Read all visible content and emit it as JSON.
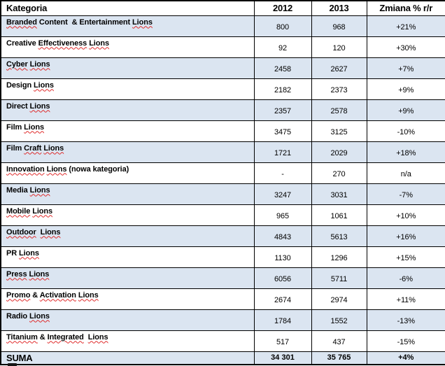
{
  "table": {
    "headers": {
      "category": "Kategoria",
      "y2012": "2012",
      "y2013": "2013",
      "change": "Zmiana % r/r"
    },
    "rows": [
      {
        "shaded": true,
        "v2012": "800",
        "v2013": "968",
        "change": "+21%",
        "segments": [
          {
            "t": "Branded",
            "sq": true
          },
          {
            "t": " Content  & Entertainment ",
            "sq": false
          },
          {
            "t": "Lions",
            "sq": true
          }
        ]
      },
      {
        "shaded": false,
        "v2012": "92",
        "v2013": "120",
        "change": "+30%",
        "segments": [
          {
            "t": "Creative ",
            "sq": false
          },
          {
            "t": "Effectiveness",
            "sq": true
          },
          {
            "t": " ",
            "sq": false
          },
          {
            "t": "Lions",
            "sq": true
          }
        ]
      },
      {
        "shaded": true,
        "v2012": "2458",
        "v2013": "2627",
        "change": "+7%",
        "segments": [
          {
            "t": "Cyber",
            "sq": true
          },
          {
            "t": " ",
            "sq": false
          },
          {
            "t": "Lions",
            "sq": true
          }
        ]
      },
      {
        "shaded": false,
        "v2012": "2182",
        "v2013": "2373",
        "change": "+9%",
        "segments": [
          {
            "t": "Design ",
            "sq": false
          },
          {
            "t": "Lions",
            "sq": true
          }
        ]
      },
      {
        "shaded": true,
        "v2012": "2357",
        "v2013": "2578",
        "change": "+9%",
        "segments": [
          {
            "t": "Direct ",
            "sq": false
          },
          {
            "t": "Lions",
            "sq": true
          }
        ]
      },
      {
        "shaded": false,
        "v2012": "3475",
        "v2013": "3125",
        "change": "-10%",
        "segments": [
          {
            "t": "Film ",
            "sq": false
          },
          {
            "t": "Lions",
            "sq": true
          }
        ]
      },
      {
        "shaded": true,
        "v2012": "1721",
        "v2013": "2029",
        "change": "+18%",
        "segments": [
          {
            "t": "Film ",
            "sq": false
          },
          {
            "t": "Craft",
            "sq": true
          },
          {
            "t": " ",
            "sq": false
          },
          {
            "t": "Lions",
            "sq": true
          }
        ]
      },
      {
        "shaded": false,
        "v2012": "-",
        "v2013": "270",
        "change": "n/a",
        "segments": [
          {
            "t": "Innovation",
            "sq": true
          },
          {
            "t": " ",
            "sq": false
          },
          {
            "t": "Lions",
            "sq": true
          },
          {
            "t": " (nowa kategoria)",
            "sq": false
          }
        ]
      },
      {
        "shaded": true,
        "v2012": "3247",
        "v2013": "3031",
        "change": "-7%",
        "segments": [
          {
            "t": "Media ",
            "sq": false
          },
          {
            "t": "Lions",
            "sq": true
          }
        ]
      },
      {
        "shaded": false,
        "v2012": "965",
        "v2013": "1061",
        "change": "+10%",
        "segments": [
          {
            "t": "Mobile",
            "sq": true
          },
          {
            "t": " ",
            "sq": false
          },
          {
            "t": "Lions",
            "sq": true
          }
        ]
      },
      {
        "shaded": true,
        "v2012": "4843",
        "v2013": "5613",
        "change": "+16%",
        "segments": [
          {
            "t": "Outdoor",
            "sq": true
          },
          {
            "t": "  ",
            "sq": false
          },
          {
            "t": "Lions",
            "sq": true
          }
        ]
      },
      {
        "shaded": false,
        "v2012": "1130",
        "v2013": "1296",
        "change": "+15%",
        "segments": [
          {
            "t": "PR ",
            "sq": false
          },
          {
            "t": "Lions",
            "sq": true
          }
        ]
      },
      {
        "shaded": true,
        "v2012": "6056",
        "v2013": "5711",
        "change": "-6%",
        "segments": [
          {
            "t": "Press",
            "sq": true
          },
          {
            "t": " ",
            "sq": false
          },
          {
            "t": "Lions",
            "sq": true
          }
        ]
      },
      {
        "shaded": false,
        "v2012": "2674",
        "v2013": "2974",
        "change": "+11%",
        "segments": [
          {
            "t": "Promo",
            "sq": true
          },
          {
            "t": " & ",
            "sq": false
          },
          {
            "t": "Activation",
            "sq": true
          },
          {
            "t": " ",
            "sq": false
          },
          {
            "t": "Lions",
            "sq": true
          }
        ]
      },
      {
        "shaded": true,
        "v2012": "1784",
        "v2013": "1552",
        "change": "-13%",
        "segments": [
          {
            "t": "Radio ",
            "sq": false
          },
          {
            "t": "Lions",
            "sq": true
          }
        ]
      },
      {
        "shaded": false,
        "v2012": "517",
        "v2013": "437",
        "change": "-15%",
        "segments": [
          {
            "t": "Titanium",
            "sq": true
          },
          {
            "t": " & ",
            "sq": false
          },
          {
            "t": "Integrated",
            "sq": true
          },
          {
            "t": "  ",
            "sq": false
          },
          {
            "t": "Lions",
            "sq": true
          }
        ]
      }
    ],
    "summary": {
      "label": "SUMA",
      "v2012": "34 301",
      "v2013": "35 765",
      "change": "+4%"
    }
  },
  "colors": {
    "row_shade": "#dbe5f1",
    "border": "#000000",
    "squiggle": "#e02b2b",
    "text": "#000000"
  },
  "chart_data": {
    "type": "table",
    "columns": [
      "Kategoria",
      "2012",
      "2013",
      "Zmiana % r/r"
    ],
    "rows": [
      [
        "Branded Content & Entertainment Lions",
        "800",
        "968",
        "+21%"
      ],
      [
        "Creative Effectiveness Lions",
        "92",
        "120",
        "+30%"
      ],
      [
        "Cyber Lions",
        "2458",
        "2627",
        "+7%"
      ],
      [
        "Design Lions",
        "2182",
        "2373",
        "+9%"
      ],
      [
        "Direct Lions",
        "2357",
        "2578",
        "+9%"
      ],
      [
        "Film Lions",
        "3475",
        "3125",
        "-10%"
      ],
      [
        "Film Craft Lions",
        "1721",
        "2029",
        "+18%"
      ],
      [
        "Innovation Lions (nowa kategoria)",
        "-",
        "270",
        "n/a"
      ],
      [
        "Media Lions",
        "3247",
        "3031",
        "-7%"
      ],
      [
        "Mobile Lions",
        "965",
        "1061",
        "+10%"
      ],
      [
        "Outdoor Lions",
        "4843",
        "5613",
        "+16%"
      ],
      [
        "PR Lions",
        "1130",
        "1296",
        "+15%"
      ],
      [
        "Press Lions",
        "6056",
        "5711",
        "-6%"
      ],
      [
        "Promo & Activation Lions",
        "2674",
        "2974",
        "+11%"
      ],
      [
        "Radio Lions",
        "1784",
        "1552",
        "-13%"
      ],
      [
        "Titanium & Integrated Lions",
        "517",
        "437",
        "-15%"
      ],
      [
        "SUMA",
        "34 301",
        "35 765",
        "+4%"
      ]
    ]
  }
}
